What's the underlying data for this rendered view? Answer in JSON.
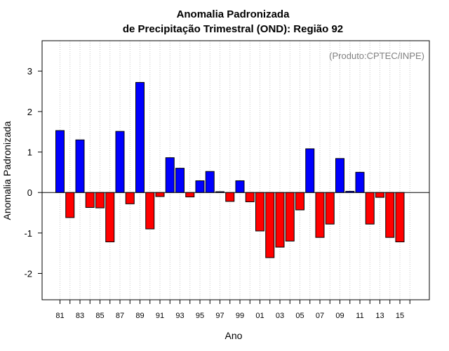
{
  "chart_data": {
    "type": "bar",
    "title_line1": "Anomalia Padronizada",
    "title_line2": "de Precipitação Trimestral (OND): Região 92",
    "xlabel": "Ano",
    "ylabel": "Anomalia Padronizada",
    "credit": "(Produto:CPTEC/INPE)",
    "ylim": [
      -2.65,
      3.75
    ],
    "yticks": [
      -2,
      -1,
      0,
      1,
      2,
      3
    ],
    "grid": "vertical dotted",
    "positive_color": "#0000ff",
    "negative_color": "#ff0000",
    "categories": [
      "81",
      "82",
      "83",
      "84",
      "85",
      "86",
      "87",
      "88",
      "89",
      "90",
      "91",
      "92",
      "93",
      "94",
      "95",
      "96",
      "97",
      "98",
      "99",
      "00",
      "01",
      "02",
      "03",
      "04",
      "05",
      "06",
      "07",
      "08",
      "09",
      "10",
      "11",
      "12",
      "13",
      "14",
      "15"
    ],
    "values": [
      1.53,
      -0.62,
      1.3,
      -0.37,
      -0.38,
      -1.22,
      1.51,
      -0.28,
      2.72,
      -0.9,
      -0.1,
      0.86,
      0.6,
      -0.11,
      0.29,
      0.52,
      0.02,
      -0.22,
      0.29,
      -0.23,
      -0.95,
      -1.61,
      -1.35,
      -1.2,
      -0.43,
      1.08,
      -1.11,
      -0.78,
      0.84,
      0.03,
      0.5,
      -0.78,
      -0.12,
      -1.11,
      -1.22
    ],
    "xtick_labels": [
      "81",
      "83",
      "85",
      "87",
      "89",
      "91",
      "93",
      "95",
      "97",
      "99",
      "01",
      "03",
      "05",
      "07",
      "09",
      "11",
      "13",
      "15"
    ]
  }
}
